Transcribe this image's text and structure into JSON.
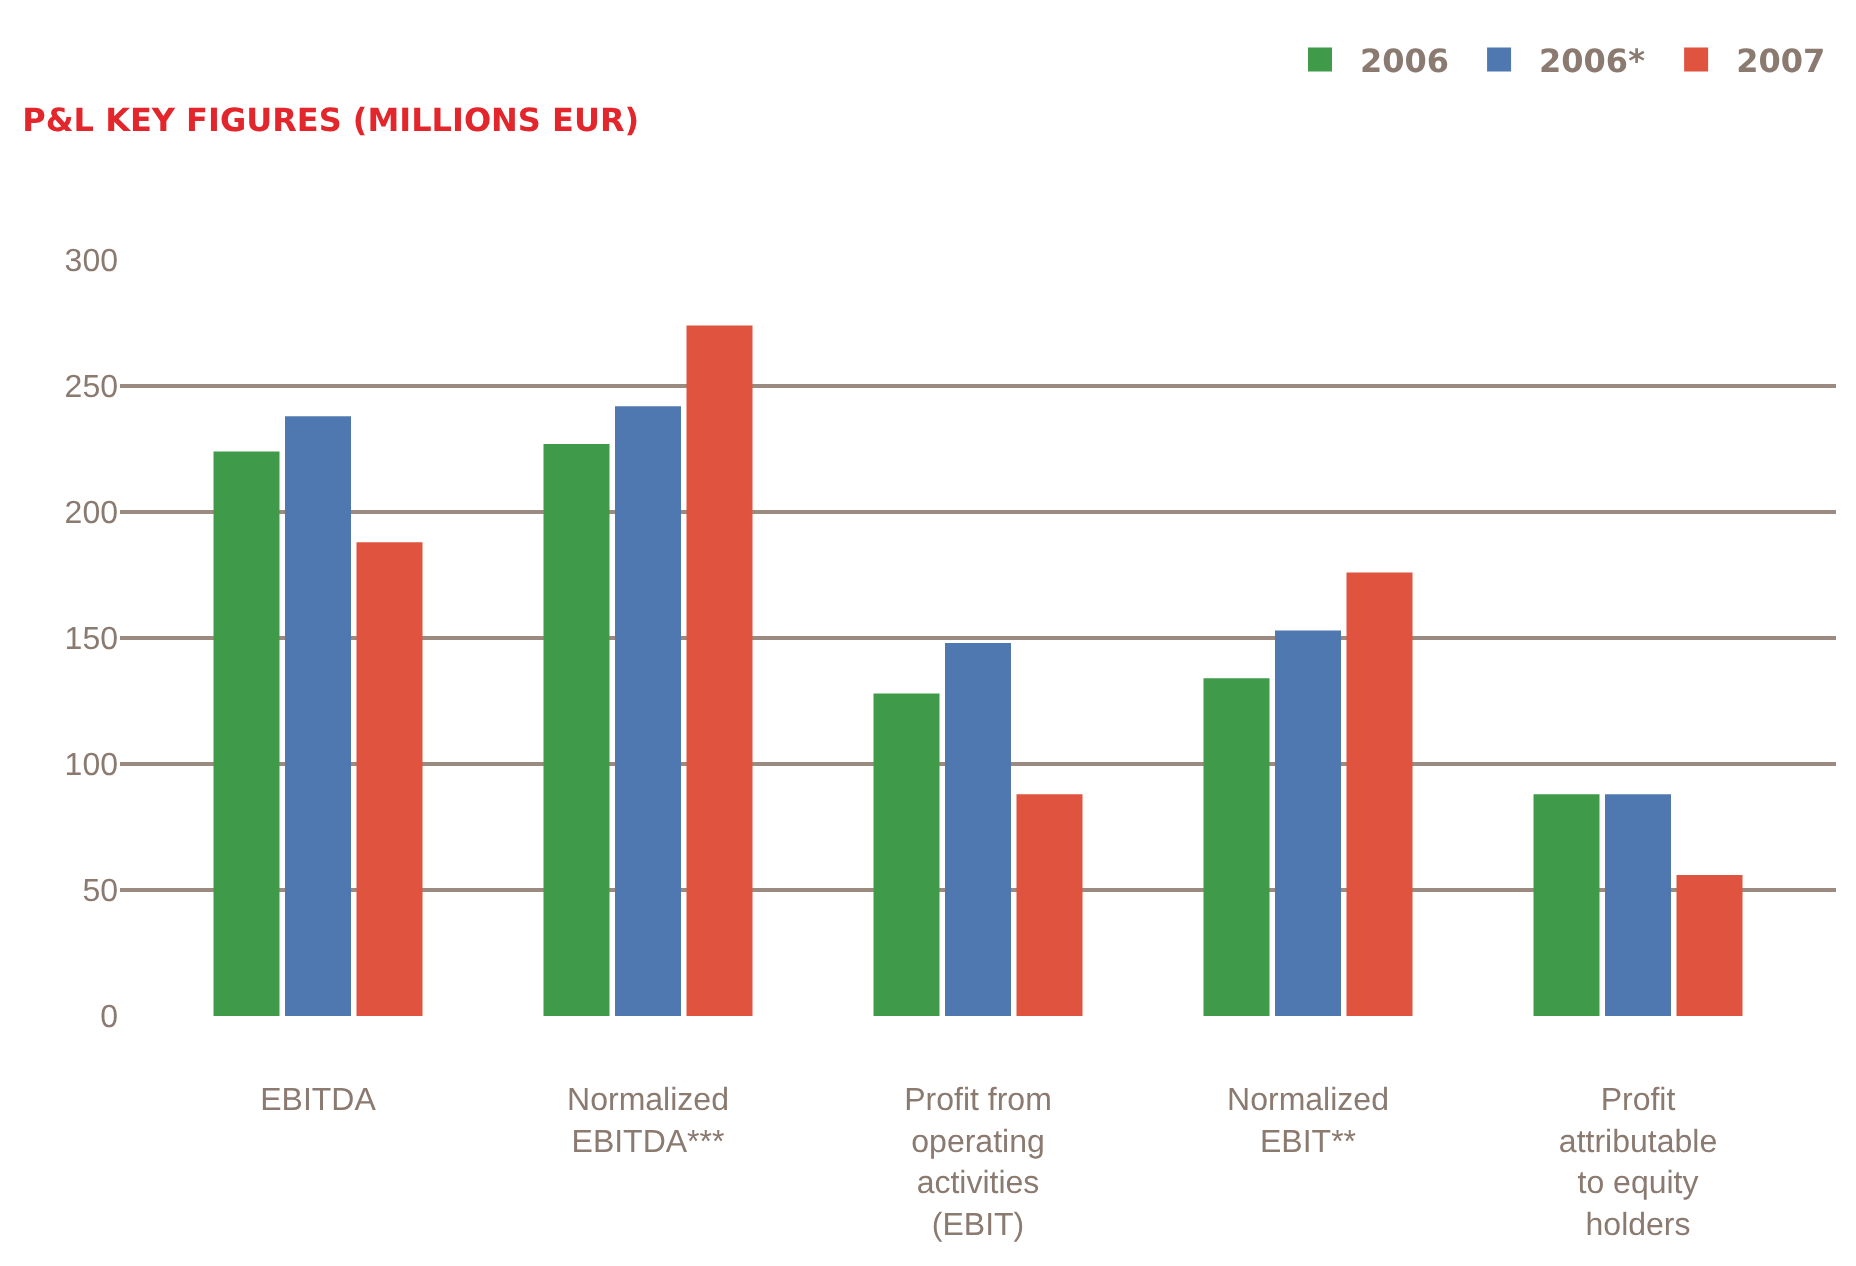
{
  "chart_data": {
    "type": "bar",
    "title": "P&L KEY FIGURES (MILLIONS EUR)",
    "categories": [
      "EBITDA",
      "Normalized EBITDA***",
      "Profit from operating activities (EBIT)",
      "Normalized EBIT**",
      "Profit attributable to equity holders"
    ],
    "series": [
      {
        "name": "2006",
        "color": "#3f9a4a",
        "values": [
          224,
          227,
          128,
          134,
          88
        ]
      },
      {
        "name": "2006*",
        "color": "#4f78b0",
        "values": [
          238,
          242,
          148,
          153,
          88
        ]
      },
      {
        "name": "2007",
        "color": "#e0533f",
        "values": [
          188,
          274,
          88,
          176,
          56
        ]
      }
    ],
    "ylim": [
      0,
      300
    ],
    "yticks": [
      0,
      50,
      100,
      150,
      200,
      250,
      300
    ],
    "grid": "y",
    "legend": "top right"
  }
}
